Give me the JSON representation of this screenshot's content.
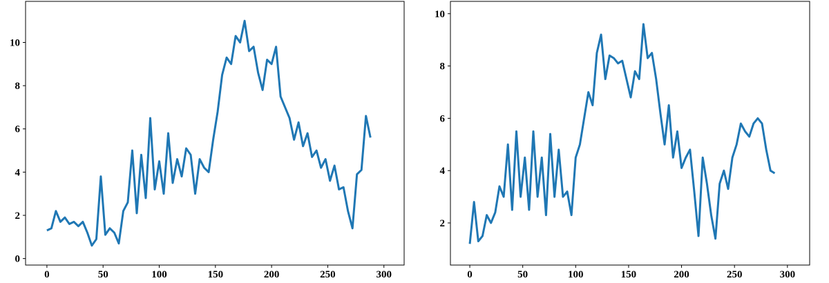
{
  "chart_data": [
    {
      "type": "line",
      "x": [
        0,
        4,
        8,
        12,
        16,
        20,
        24,
        28,
        32,
        36,
        40,
        44,
        48,
        52,
        56,
        60,
        64,
        68,
        72,
        76,
        80,
        84,
        88,
        92,
        96,
        100,
        104,
        108,
        112,
        116,
        120,
        124,
        128,
        132,
        136,
        140,
        144,
        148,
        152,
        156,
        160,
        164,
        168,
        172,
        176,
        180,
        184,
        188,
        192,
        196,
        200,
        204,
        208,
        212,
        216,
        220,
        224,
        228,
        232,
        236,
        240,
        244,
        248,
        252,
        256,
        260,
        264,
        268,
        272,
        276,
        280,
        284,
        288
      ],
      "series": [
        {
          "color": "#1f77b4",
          "values": [
            1.3,
            1.4,
            2.2,
            1.7,
            1.9,
            1.6,
            1.7,
            1.5,
            1.7,
            1.2,
            0.6,
            0.9,
            3.8,
            1.1,
            1.4,
            1.2,
            0.7,
            2.2,
            2.6,
            5.0,
            2.1,
            4.8,
            2.8,
            6.5,
            3.2,
            4.5,
            3.0,
            5.8,
            3.5,
            4.6,
            3.8,
            5.1,
            4.8,
            3.0,
            4.6,
            4.2,
            4.0,
            5.5,
            6.8,
            8.5,
            9.3,
            9.0,
            10.3,
            10.0,
            11.0,
            9.6,
            9.8,
            8.6,
            7.8,
            9.2,
            9.0,
            9.8,
            7.5,
            7.0,
            6.5,
            5.5,
            6.3,
            5.2,
            5.8,
            4.7,
            5.0,
            4.2,
            4.6,
            3.6,
            4.3,
            3.2,
            3.3,
            2.2,
            1.4,
            3.9,
            4.1,
            6.6,
            5.6
          ]
        }
      ],
      "xlim": [
        -19,
        318
      ],
      "ylim": [
        -0.3,
        11.9
      ],
      "xticks": [
        0,
        50,
        100,
        150,
        200,
        250,
        300
      ],
      "yticks": [
        0,
        2,
        4,
        6,
        8,
        10
      ]
    },
    {
      "type": "line",
      "x": [
        0,
        4,
        8,
        12,
        16,
        20,
        24,
        28,
        32,
        36,
        40,
        44,
        48,
        52,
        56,
        60,
        64,
        68,
        72,
        76,
        80,
        84,
        88,
        92,
        96,
        100,
        104,
        108,
        112,
        116,
        120,
        124,
        128,
        132,
        136,
        140,
        144,
        148,
        152,
        156,
        160,
        164,
        168,
        172,
        176,
        180,
        184,
        188,
        192,
        196,
        200,
        204,
        208,
        212,
        216,
        220,
        224,
        228,
        232,
        236,
        240,
        244,
        248,
        252,
        256,
        260,
        264,
        268,
        272,
        276,
        280,
        284,
        288
      ],
      "series": [
        {
          "color": "#1f77b4",
          "values": [
            1.2,
            2.8,
            1.3,
            1.5,
            2.3,
            2.0,
            2.4,
            3.4,
            3.0,
            5.0,
            2.5,
            5.5,
            3.0,
            4.5,
            2.5,
            5.5,
            3.0,
            4.5,
            2.3,
            5.4,
            3.0,
            4.8,
            3.0,
            3.2,
            2.3,
            4.5,
            5.0,
            6.0,
            7.0,
            6.5,
            8.5,
            9.2,
            7.5,
            8.4,
            8.3,
            8.1,
            8.2,
            7.5,
            6.8,
            7.8,
            7.5,
            9.6,
            8.3,
            8.5,
            7.5,
            6.2,
            5.0,
            6.5,
            4.5,
            5.5,
            4.1,
            4.5,
            4.8,
            3.2,
            1.5,
            4.5,
            3.5,
            2.3,
            1.4,
            3.5,
            4.0,
            3.3,
            4.5,
            5.0,
            5.8,
            5.5,
            5.3,
            5.8,
            6.0,
            5.8,
            4.8,
            4.0,
            3.9
          ]
        }
      ],
      "xlim": [
        -18.3,
        321
      ],
      "ylim": [
        0.39,
        10.47
      ],
      "xticks": [
        0,
        50,
        100,
        150,
        200,
        250,
        300
      ],
      "yticks": [
        2,
        4,
        6,
        8,
        10
      ]
    }
  ]
}
